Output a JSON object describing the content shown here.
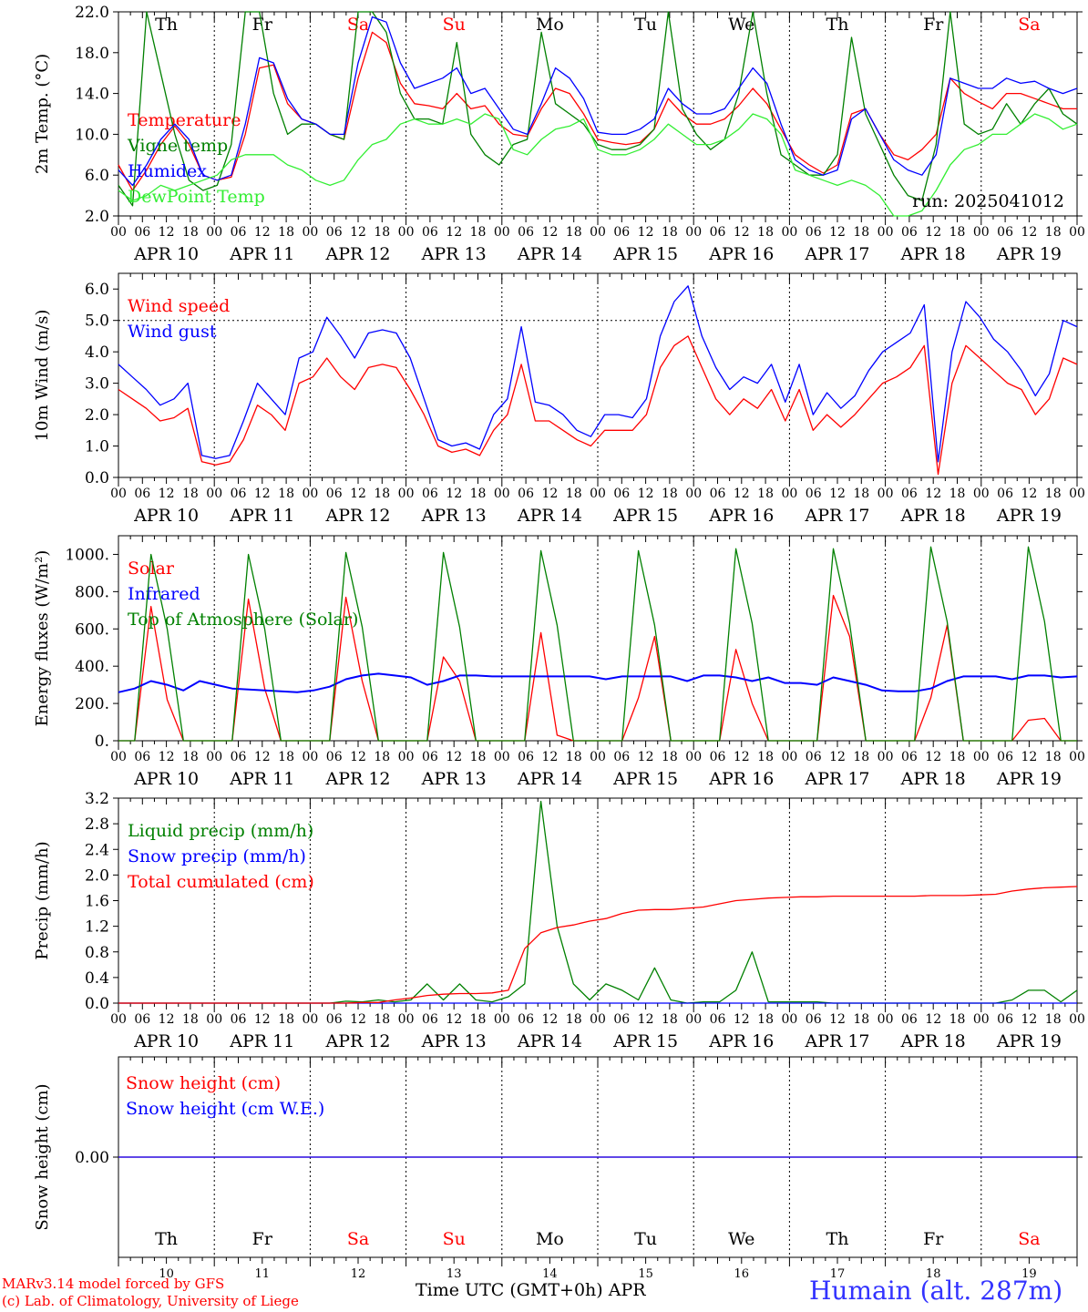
{
  "colors": {
    "red": "#ff0000",
    "green": "#008000",
    "blue": "#0000ff",
    "lightgreen": "#33ee33",
    "weekend": "#ff0000",
    "weekday": "#000000"
  },
  "days": {
    "abbr": [
      "Th",
      "Fr",
      "Sa",
      "Su",
      "Mo",
      "Tu",
      "We",
      "Th",
      "Fr",
      "Sa"
    ],
    "dates": [
      "APR 10",
      "APR 11",
      "APR 12",
      "APR 13",
      "APR 14",
      "APR 15",
      "APR 16",
      "APR 17",
      "APR 18",
      "APR 19"
    ],
    "numbers": [
      "10",
      "11",
      "12",
      "13",
      "14",
      "15",
      "16",
      "17",
      "18",
      "19"
    ],
    "weekend": [
      false,
      false,
      true,
      true,
      false,
      false,
      false,
      false,
      false,
      true
    ],
    "hour_ticks": [
      "00",
      "06",
      "12",
      "18"
    ],
    "final_hour": "00"
  },
  "chart_data": [
    {
      "type": "line",
      "ylabel": "2m Temp. (°C)",
      "ylim": [
        2.0,
        22.0
      ],
      "yticks": [
        "2.0",
        "6.0",
        "10.0",
        "14.0",
        "18.0",
        "22.0"
      ],
      "annotation": "run: 2025041012",
      "x_hours_step": 6,
      "series": [
        {
          "name": "Temperature",
          "color": "red",
          "values": [
            7.0,
            4.5,
            6.5,
            9.0,
            10.8,
            9.0,
            6.0,
            5.5,
            5.8,
            10.0,
            16.5,
            16.8,
            13.0,
            11.5,
            11.0,
            10.0,
            9.5,
            15.5,
            20.0,
            19.0,
            15.0,
            13.0,
            12.8,
            12.5,
            14.0,
            12.5,
            12.8,
            11.0,
            10.0,
            9.8,
            12.5,
            14.5,
            14.0,
            12.0,
            9.5,
            9.2,
            9.0,
            9.2,
            10.5,
            13.5,
            12.0,
            11.0,
            11.0,
            11.5,
            12.8,
            14.5,
            13.0,
            10.5,
            8.0,
            7.0,
            6.2,
            7.0,
            12.0,
            12.5,
            10.0,
            8.0,
            7.5,
            8.5,
            10.0,
            15.5,
            14.0,
            13.2,
            12.5,
            14.0,
            14.0,
            13.5,
            13.0,
            12.5,
            12.5
          ]
        },
        {
          "name": "Vigne temp",
          "color": "green",
          "values": [
            5.0,
            3.0,
            22.0,
            16.0,
            10.0,
            5.5,
            4.5,
            5.0,
            9.0,
            22.0,
            22.0,
            14.0,
            10.0,
            11.0,
            11.0,
            10.0,
            9.5,
            22.0,
            22.0,
            20.0,
            14.0,
            11.5,
            11.5,
            11.0,
            19.0,
            10.0,
            8.0,
            7.0,
            9.0,
            9.5,
            20.0,
            13.0,
            12.0,
            11.0,
            9.0,
            8.5,
            8.5,
            9.0,
            10.5,
            22.0,
            12.5,
            10.0,
            8.5,
            9.5,
            14.0,
            22.0,
            14.0,
            8.0,
            7.0,
            6.0,
            6.0,
            8.0,
            19.5,
            12.0,
            9.0,
            6.0,
            4.0,
            3.5,
            9.0,
            22.0,
            11.0,
            10.0,
            10.5,
            13.0,
            11.0,
            13.0,
            14.5,
            12.0,
            11.0
          ]
        },
        {
          "name": "Humidex",
          "color": "blue",
          "values": [
            6.5,
            5.0,
            7.0,
            9.5,
            11.0,
            9.5,
            6.0,
            5.5,
            6.0,
            11.0,
            17.5,
            17.0,
            13.5,
            11.5,
            11.0,
            10.0,
            10.0,
            17.0,
            21.5,
            21.0,
            17.0,
            14.5,
            15.0,
            15.5,
            16.5,
            14.0,
            14.5,
            12.5,
            10.5,
            10.0,
            13.0,
            16.5,
            15.5,
            13.5,
            10.2,
            10.0,
            10.0,
            10.5,
            11.5,
            14.5,
            13.0,
            12.0,
            12.0,
            12.5,
            14.5,
            16.5,
            15.0,
            11.0,
            7.5,
            6.5,
            6.0,
            6.5,
            11.5,
            12.5,
            10.0,
            7.5,
            6.5,
            6.0,
            8.0,
            15.5,
            15.0,
            14.5,
            14.5,
            15.5,
            15.0,
            15.2,
            14.5,
            14.0,
            14.5
          ]
        },
        {
          "name": "DewPoint Temp",
          "color": "lightgreen",
          "values": [
            4.5,
            3.5,
            4.0,
            5.0,
            4.5,
            5.0,
            5.5,
            6.0,
            7.5,
            8.0,
            8.0,
            8.0,
            7.0,
            6.5,
            5.5,
            5.0,
            5.5,
            7.5,
            9.0,
            9.5,
            11.0,
            11.5,
            11.0,
            11.0,
            11.5,
            11.0,
            12.0,
            11.5,
            8.5,
            8.0,
            9.5,
            10.5,
            10.8,
            11.5,
            8.5,
            8.0,
            8.0,
            8.5,
            9.5,
            11.0,
            10.0,
            9.0,
            9.0,
            9.5,
            10.5,
            12.0,
            11.5,
            10.0,
            6.5,
            6.0,
            5.5,
            5.0,
            5.5,
            5.0,
            4.0,
            2.0,
            1.5,
            2.5,
            4.5,
            7.0,
            8.5,
            9.0,
            10.0,
            10.0,
            11.0,
            12.0,
            11.5,
            10.5,
            11.0
          ]
        }
      ]
    },
    {
      "type": "line",
      "ylabel": "10m Wind (m/s)",
      "ylim": [
        0.0,
        6.5
      ],
      "yticks": [
        "0.0",
        "1.0",
        "2.0",
        "3.0",
        "4.0",
        "5.0",
        "6.0"
      ],
      "reference_line": 5.0,
      "x_hours_step": 6,
      "series": [
        {
          "name": "Wind speed",
          "color": "red",
          "values": [
            2.8,
            2.5,
            2.2,
            1.8,
            1.9,
            2.2,
            0.5,
            0.4,
            0.5,
            1.2,
            2.3,
            2.0,
            1.5,
            3.0,
            3.2,
            3.8,
            3.2,
            2.8,
            3.5,
            3.6,
            3.5,
            2.8,
            2.0,
            1.0,
            0.8,
            0.9,
            0.7,
            1.5,
            2.0,
            3.6,
            1.8,
            1.8,
            1.5,
            1.2,
            1.0,
            1.5,
            1.5,
            1.5,
            2.0,
            3.5,
            4.2,
            4.5,
            3.5,
            2.5,
            2.0,
            2.5,
            2.2,
            2.8,
            1.8,
            2.8,
            1.5,
            2.0,
            1.6,
            2.0,
            2.5,
            3.0,
            3.2,
            3.5,
            4.2,
            0.1,
            3.0,
            4.2,
            3.8,
            3.4,
            3.0,
            2.8,
            2.0,
            2.5,
            3.8,
            3.6
          ]
        },
        {
          "name": "Wind gust",
          "color": "blue",
          "values": [
            3.6,
            3.2,
            2.8,
            2.3,
            2.5,
            3.0,
            0.7,
            0.6,
            0.7,
            1.8,
            3.0,
            2.5,
            2.0,
            3.8,
            4.0,
            5.1,
            4.5,
            3.8,
            4.6,
            4.7,
            4.6,
            3.8,
            2.5,
            1.2,
            1.0,
            1.1,
            0.9,
            2.0,
            2.5,
            4.8,
            2.4,
            2.3,
            2.0,
            1.5,
            1.3,
            2.0,
            2.0,
            1.9,
            2.5,
            4.5,
            5.6,
            6.1,
            4.5,
            3.5,
            2.8,
            3.2,
            3.0,
            3.6,
            2.4,
            3.6,
            2.0,
            2.7,
            2.2,
            2.6,
            3.4,
            4.0,
            4.3,
            4.6,
            5.5,
            0.5,
            4.0,
            5.6,
            5.1,
            4.4,
            4.0,
            3.4,
            2.6,
            3.3,
            5.0,
            4.8
          ]
        }
      ]
    },
    {
      "type": "line",
      "ylabel": "Energy fluxes (W/m²)",
      "ylim": [
        0,
        1100
      ],
      "yticks": [
        "0.",
        "200.",
        "400.",
        "600.",
        "800.",
        "1000."
      ],
      "x_hours_step": 6,
      "series": [
        {
          "name": "Solar",
          "color": "red",
          "values": [
            0,
            0,
            720,
            220,
            0,
            0,
            0,
            0,
            760,
            280,
            0,
            0,
            0,
            0,
            770,
            320,
            0,
            0,
            0,
            0,
            450,
            320,
            0,
            0,
            0,
            0,
            580,
            30,
            0,
            0,
            0,
            0,
            230,
            560,
            0,
            0,
            0,
            0,
            490,
            200,
            0,
            0,
            0,
            0,
            780,
            560,
            0,
            0,
            0,
            0,
            230,
            620,
            0,
            0,
            0,
            0,
            110,
            120,
            0,
            0
          ]
        },
        {
          "name": "Infrared",
          "color": "blue",
          "values": [
            260,
            280,
            320,
            300,
            270,
            320,
            300,
            280,
            275,
            270,
            265,
            260,
            270,
            290,
            330,
            350,
            360,
            350,
            340,
            300,
            320,
            350,
            350,
            345,
            345,
            345,
            345,
            345,
            345,
            345,
            330,
            345,
            345,
            345,
            345,
            320,
            350,
            350,
            340,
            320,
            340,
            310,
            310,
            300,
            340,
            320,
            300,
            270,
            265,
            265,
            280,
            320,
            345,
            345,
            345,
            330,
            350,
            350,
            340,
            345
          ]
        },
        {
          "name": "Top of Atmosphere (Solar)",
          "color": "green",
          "values": [
            0,
            0,
            1000,
            600,
            0,
            0,
            0,
            0,
            1000,
            600,
            0,
            0,
            0,
            0,
            1010,
            610,
            0,
            0,
            0,
            0,
            1010,
            610,
            0,
            0,
            0,
            0,
            1020,
            620,
            0,
            0,
            0,
            0,
            1020,
            620,
            0,
            0,
            0,
            0,
            1030,
            630,
            0,
            0,
            0,
            0,
            1030,
            630,
            0,
            0,
            0,
            0,
            1040,
            640,
            0,
            0,
            0,
            0,
            1040,
            640,
            0,
            0
          ]
        }
      ]
    },
    {
      "type": "line",
      "ylabel": "Precip (mm/h)",
      "ylim": [
        0.0,
        3.2
      ],
      "yticks": [
        "0.0",
        "0.4",
        "0.8",
        "1.2",
        "1.6",
        "2.0",
        "2.4",
        "2.8",
        "3.2"
      ],
      "x_hours_step": 6,
      "series": [
        {
          "name": "Liquid precip (mm/h)",
          "color": "green",
          "values": [
            0,
            0,
            0,
            0,
            0,
            0,
            0,
            0,
            0,
            0,
            0,
            0,
            0,
            0,
            0.03,
            0.02,
            0.05,
            0.02,
            0.05,
            0.3,
            0.05,
            0.3,
            0.05,
            0.02,
            0.1,
            0.3,
            3.15,
            1.2,
            0.3,
            0.05,
            0.3,
            0.2,
            0.05,
            0.55,
            0.05,
            0,
            0.02,
            0.02,
            0.2,
            0.8,
            0.02,
            0.02,
            0.02,
            0.02,
            0,
            0,
            0,
            0,
            0,
            0,
            0,
            0,
            0,
            0,
            0,
            0.05,
            0.2,
            0.2,
            0.02,
            0.2
          ]
        },
        {
          "name": "Snow precip (mm/h)",
          "color": "blue",
          "values": [
            0,
            0,
            0,
            0,
            0,
            0,
            0,
            0,
            0,
            0,
            0,
            0,
            0,
            0,
            0,
            0,
            0,
            0,
            0,
            0,
            0,
            0,
            0,
            0,
            0,
            0,
            0,
            0,
            0,
            0,
            0,
            0,
            0,
            0,
            0,
            0,
            0,
            0,
            0,
            0,
            0,
            0,
            0,
            0,
            0,
            0,
            0,
            0,
            0,
            0,
            0,
            0,
            0,
            0,
            0,
            0,
            0,
            0,
            0,
            0
          ]
        },
        {
          "name": "Total cumulated (cm)",
          "color": "red",
          "values": [
            0,
            0,
            0,
            0,
            0,
            0,
            0,
            0,
            0,
            0,
            0,
            0,
            0,
            0,
            0.0,
            0.01,
            0.01,
            0.05,
            0.08,
            0.12,
            0.14,
            0.15,
            0.15,
            0.16,
            0.2,
            0.85,
            1.1,
            1.18,
            1.22,
            1.28,
            1.32,
            1.4,
            1.45,
            1.46,
            1.46,
            1.48,
            1.5,
            1.55,
            1.6,
            1.62,
            1.64,
            1.65,
            1.66,
            1.66,
            1.67,
            1.67,
            1.67,
            1.67,
            1.67,
            1.67,
            1.68,
            1.68,
            1.68,
            1.69,
            1.7,
            1.75,
            1.78,
            1.8,
            1.81,
            1.82
          ]
        }
      ]
    },
    {
      "type": "line",
      "ylabel": "Snow height (cm)",
      "ylim": [
        -1.0,
        1.0
      ],
      "yticks": [
        "0.00"
      ],
      "x_hours_step": 6,
      "series": [
        {
          "name": "Snow height (cm)",
          "color": "red",
          "values": [
            0,
            0
          ]
        },
        {
          "name": "Snow height (cm W.E.)",
          "color": "blue",
          "values": [
            0,
            0
          ]
        }
      ]
    }
  ],
  "footer": {
    "credit_line1": "MARv3.14 model forced by GFS",
    "credit_line2": "(c) Lab. of Climatology, University of Liege",
    "xlabel": "Time UTC (GMT+0h) APR",
    "station": "Humain (alt. 287m)"
  }
}
